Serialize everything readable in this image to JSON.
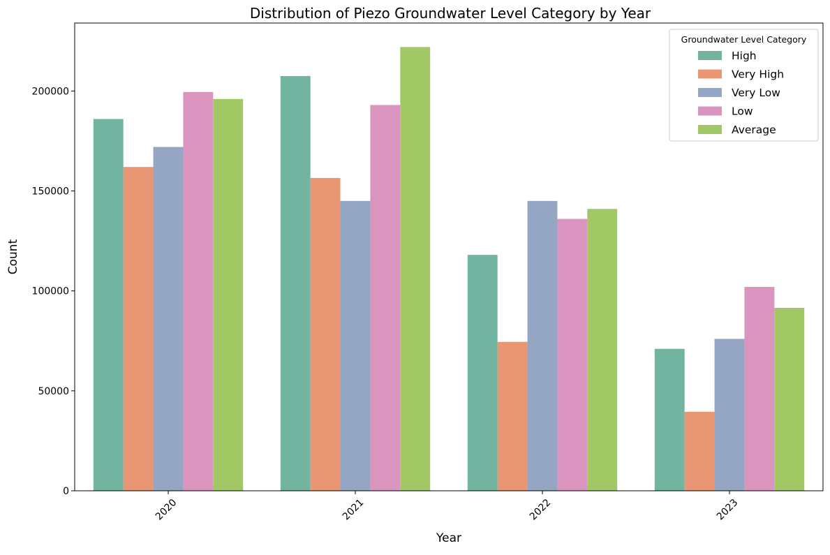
{
  "chart_data": {
    "type": "bar",
    "title": "Distribution of Piezo Groundwater Level Category by Year",
    "xlabel": "Year",
    "ylabel": "Count",
    "categories": [
      "2020",
      "2021",
      "2022",
      "2023"
    ],
    "ylim": [
      0,
      234000
    ],
    "yticks": [
      0,
      50000,
      100000,
      150000,
      200000
    ],
    "ytick_labels": [
      "0",
      "50000",
      "100000",
      "150000",
      "200000"
    ],
    "grid": false,
    "legend": {
      "title": "Groundwater Level Category",
      "position": "top-right"
    },
    "series": [
      {
        "name": "High",
        "color": "#73b4a0",
        "values": [
          186000,
          207500,
          118000,
          71000
        ]
      },
      {
        "name": "Very High",
        "color": "#e89674",
        "values": [
          162000,
          156500,
          74500,
          39500
        ]
      },
      {
        "name": "Very Low",
        "color": "#95a5c4",
        "values": [
          172000,
          145000,
          145000,
          76000
        ]
      },
      {
        "name": "Low",
        "color": "#da95bf",
        "values": [
          199500,
          193000,
          136000,
          102000
        ]
      },
      {
        "name": "Average",
        "color": "#a2c865",
        "values": [
          196000,
          222000,
          141000,
          91500
        ]
      }
    ]
  }
}
